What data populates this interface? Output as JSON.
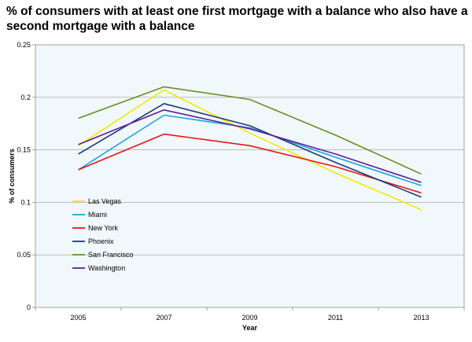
{
  "chart_data": {
    "type": "line",
    "title": "% of consumers with at least one first mortgage with a balance who also have a second mortgage with a balance",
    "xlabel": "Year",
    "ylabel": "% of consumers",
    "categories": [
      "2005",
      "2007",
      "2009",
      "2011",
      "2013"
    ],
    "ylim": [
      0,
      0.25
    ],
    "yticks": [
      "0",
      "0.05",
      "0.1",
      "0.15",
      "0.2",
      "0.25"
    ],
    "grid": true,
    "legend_position": "bottom-left",
    "plot_background": "#f0f8fb",
    "series": [
      {
        "name": "Las Vegas",
        "color": "#f5e800",
        "values": [
          0.154,
          0.207,
          0.166,
          0.128,
          0.093
        ]
      },
      {
        "name": "Miami",
        "color": "#1ba3e0",
        "values": [
          0.131,
          0.183,
          0.171,
          0.143,
          0.116
        ]
      },
      {
        "name": "New York",
        "color": "#e8141a",
        "values": [
          0.131,
          0.165,
          0.154,
          0.134,
          0.109
        ]
      },
      {
        "name": "Phoenix",
        "color": "#1f3b73",
        "values": [
          0.146,
          0.194,
          0.173,
          0.138,
          0.105
        ]
      },
      {
        "name": "San Francisco",
        "color": "#6b8e23",
        "values": [
          0.18,
          0.21,
          0.198,
          0.164,
          0.127
        ]
      },
      {
        "name": "Washington",
        "color": "#5b1f9e",
        "values": [
          0.155,
          0.188,
          0.17,
          0.146,
          0.119
        ]
      }
    ]
  }
}
